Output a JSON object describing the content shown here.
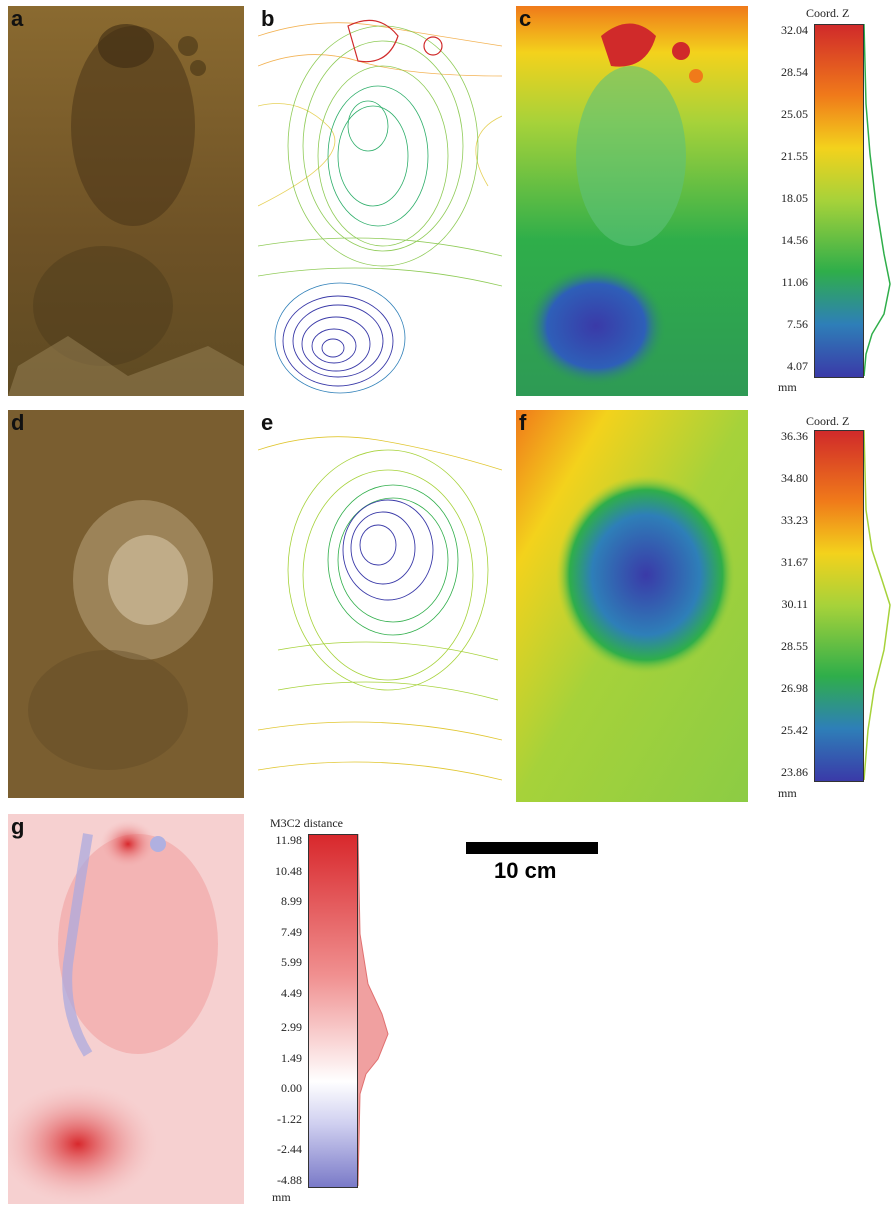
{
  "panels": {
    "a": "a",
    "b": "b",
    "c": "c",
    "d": "d",
    "e": "e",
    "f": "f",
    "g": "g"
  },
  "colorbar_top": {
    "title": "Coord. Z",
    "ticks": [
      "32.04",
      "28.54",
      "25.05",
      "21.55",
      "18.05",
      "14.56",
      "11.06",
      "7.56",
      "4.07"
    ],
    "unit": "mm"
  },
  "colorbar_mid": {
    "title": "Coord. Z",
    "ticks": [
      "36.36",
      "34.80",
      "33.23",
      "31.67",
      "30.11",
      "28.55",
      "26.98",
      "25.42",
      "23.86"
    ],
    "unit": "mm"
  },
  "colorbar_bottom": {
    "title": "M3C2 distance",
    "ticks": [
      "11.98",
      "10.48",
      "8.99",
      "7.49",
      "5.99",
      "4.49",
      "2.99",
      "1.49",
      "0.00",
      "-1.22",
      "-2.44",
      "-4.88"
    ],
    "unit": "mm"
  },
  "scale": {
    "label": "10 cm"
  },
  "colors": {
    "photo": "#7a5a2a",
    "rainbow": [
      "#d02a2a",
      "#f07a1a",
      "#f3d21c",
      "#a6d23a",
      "#2fae4a",
      "#2e7fb8",
      "#3a3aa8"
    ],
    "diverging": [
      "#d8282c",
      "#ffffff",
      "#7a7ac8"
    ]
  }
}
